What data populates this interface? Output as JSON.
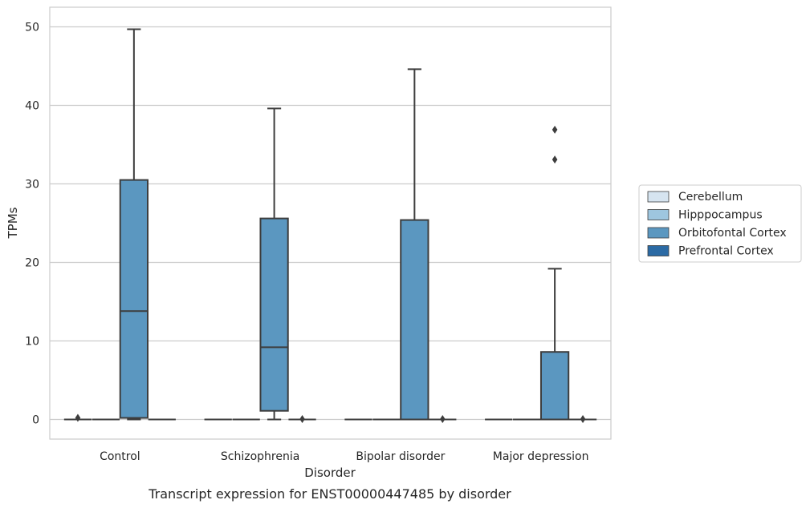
{
  "chart_data": {
    "type": "box",
    "caption": "Transcript expression for ENST00000447485 by disorder",
    "xlabel": "Disorder",
    "ylabel": "TPMs",
    "ylim": [
      -2.5,
      52.5
    ],
    "yticks": [
      0,
      10,
      20,
      30,
      40,
      50
    ],
    "grid": "horizontal",
    "legend_position": "right",
    "categories": [
      "Control",
      "Schizophrenia",
      "Bipolar disorder",
      "Major depression"
    ],
    "hue": [
      {
        "name": "Cerebellum",
        "color": "#d6e4f0"
      },
      {
        "name": "Hipppocampus",
        "color": "#9ec6df"
      },
      {
        "name": "Orbitofontal Cortex",
        "color": "#5b97c0"
      },
      {
        "name": "Prefrontal Cortex",
        "color": "#2b6aa4"
      }
    ],
    "boxes": [
      {
        "category": 0,
        "hue": 0,
        "q1": 0,
        "median": 0,
        "q3": 0,
        "whisker_low": 0,
        "whisker_high": 0,
        "fliers": [
          0.2
        ]
      },
      {
        "category": 0,
        "hue": 1,
        "q1": 0,
        "median": 0,
        "q3": 0,
        "whisker_low": 0,
        "whisker_high": 0,
        "fliers": []
      },
      {
        "category": 0,
        "hue": 2,
        "q1": 0.2,
        "median": 13.8,
        "q3": 30.5,
        "whisker_low": 0,
        "whisker_high": 49.7,
        "fliers": []
      },
      {
        "category": 0,
        "hue": 3,
        "q1": 0,
        "median": 0,
        "q3": 0,
        "whisker_low": 0,
        "whisker_high": 0,
        "fliers": []
      },
      {
        "category": 1,
        "hue": 0,
        "q1": 0,
        "median": 0,
        "q3": 0,
        "whisker_low": 0,
        "whisker_high": 0,
        "fliers": []
      },
      {
        "category": 1,
        "hue": 1,
        "q1": 0,
        "median": 0,
        "q3": 0,
        "whisker_low": 0,
        "whisker_high": 0,
        "fliers": []
      },
      {
        "category": 1,
        "hue": 2,
        "q1": 1.1,
        "median": 9.2,
        "q3": 25.6,
        "whisker_low": 0,
        "whisker_high": 39.6,
        "fliers": []
      },
      {
        "category": 1,
        "hue": 3,
        "q1": 0,
        "median": 0,
        "q3": 0,
        "whisker_low": 0,
        "whisker_high": 0,
        "fliers": [
          0.05
        ]
      },
      {
        "category": 2,
        "hue": 0,
        "q1": 0,
        "median": 0,
        "q3": 0,
        "whisker_low": 0,
        "whisker_high": 0,
        "fliers": []
      },
      {
        "category": 2,
        "hue": 1,
        "q1": 0,
        "median": 0,
        "q3": 0,
        "whisker_low": 0,
        "whisker_high": 0,
        "fliers": []
      },
      {
        "category": 2,
        "hue": 2,
        "q1": 0,
        "median": 0,
        "q3": 25.4,
        "whisker_low": 0,
        "whisker_high": 44.6,
        "fliers": []
      },
      {
        "category": 2,
        "hue": 3,
        "q1": 0,
        "median": 0,
        "q3": 0,
        "whisker_low": 0,
        "whisker_high": 0,
        "fliers": [
          0.05
        ]
      },
      {
        "category": 3,
        "hue": 0,
        "q1": 0,
        "median": 0,
        "q3": 0,
        "whisker_low": 0,
        "whisker_high": 0,
        "fliers": []
      },
      {
        "category": 3,
        "hue": 1,
        "q1": 0,
        "median": 0,
        "q3": 0,
        "whisker_low": 0,
        "whisker_high": 0,
        "fliers": []
      },
      {
        "category": 3,
        "hue": 2,
        "q1": 0,
        "median": 0,
        "q3": 8.6,
        "whisker_low": 0,
        "whisker_high": 19.2,
        "fliers": [
          33.1,
          36.9
        ]
      },
      {
        "category": 3,
        "hue": 3,
        "q1": 0,
        "median": 0,
        "q3": 0,
        "whisker_low": 0,
        "whisker_high": 0,
        "fliers": [
          0.05
        ]
      }
    ]
  }
}
